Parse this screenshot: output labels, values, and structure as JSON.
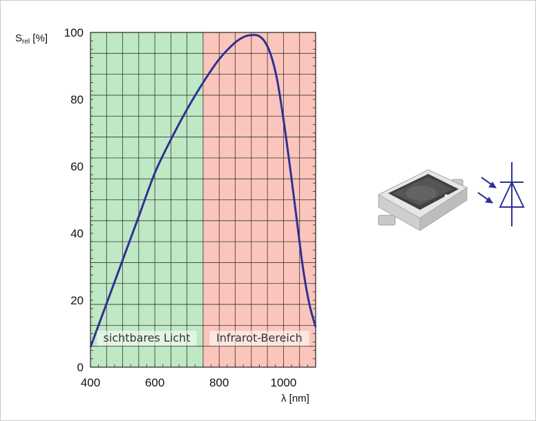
{
  "chart_data": {
    "type": "line",
    "ylabel_main": "S",
    "ylabel_sub": "rel",
    "ylabel_unit": " [%]",
    "xlabel": "λ [nm]",
    "xlim": [
      400,
      1100
    ],
    "ylim": [
      0,
      100
    ],
    "xticks": [
      400,
      600,
      800,
      1000
    ],
    "yticks": [
      0,
      20,
      40,
      60,
      80,
      100
    ],
    "grid": true,
    "regions": [
      {
        "label": "sichtbares Licht",
        "from": 400,
        "to": 750,
        "color": "#bfe8c4"
      },
      {
        "label": "Infrarot-Bereich",
        "from": 750,
        "to": 1100,
        "color": "#fbc5bc"
      }
    ],
    "series": [
      {
        "color": "#2e3192",
        "x": [
          400,
          450,
          500,
          550,
          600,
          650,
          700,
          750,
          800,
          850,
          880,
          900,
          920,
          940,
          960,
          980,
          1000,
          1020,
          1040,
          1060,
          1080,
          1100
        ],
        "y": [
          6,
          19,
          32,
          45,
          58,
          68,
          77,
          85,
          92,
          97,
          98.8,
          99.2,
          99.1,
          97.5,
          93.5,
          86,
          74,
          60,
          45,
          30,
          19,
          12
        ]
      }
    ]
  },
  "device": {
    "image_name": "photodiode-smd-package",
    "symbol_name": "photodiode-symbol",
    "symbol_color": "#2e3192"
  }
}
